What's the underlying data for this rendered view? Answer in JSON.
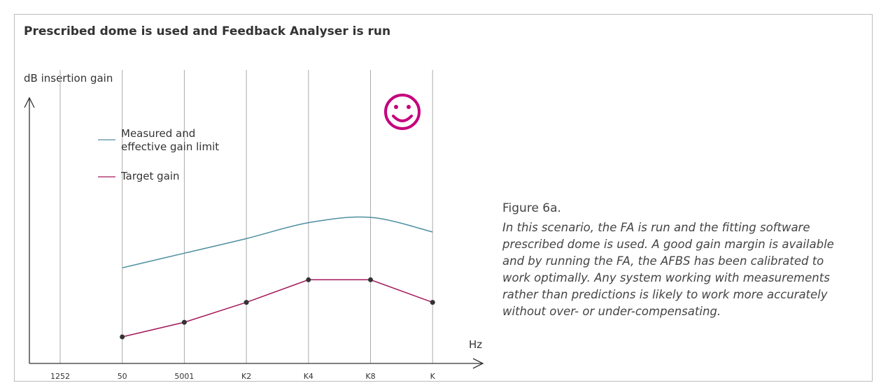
{
  "chart_data": {
    "type": "line",
    "title": "Prescribed dome is used and Feedback Analyser is run",
    "y_label": "dB insertion gain",
    "x_label": "Hz",
    "categories": [
      "1252",
      "50",
      "5001",
      "K2",
      "K4",
      "K8",
      "K"
    ],
    "ylim": [
      0,
      100
    ],
    "series": [
      {
        "name": "Measured and effective gain limit",
        "color": "#4e8fa0",
        "smooth": true,
        "markers": false,
        "values": [
          null,
          36,
          41.5,
          47,
          53,
          55,
          49.5
        ]
      },
      {
        "name": "Target gain",
        "color": "#a3195b",
        "smooth": false,
        "markers": true,
        "values": [
          null,
          10,
          15.5,
          23,
          31.5,
          31.5,
          23
        ]
      }
    ],
    "figure_label": "Figure 6a.",
    "caption": "In this scenario, the FA is run and the fitting software prescribed dome is used. A good gain margin is available and by running the FA, the AFBS has been calibrated to work optimally. Any system working with measurements rather than predictions is likely to work more accurately without over- or under-compensating."
  }
}
